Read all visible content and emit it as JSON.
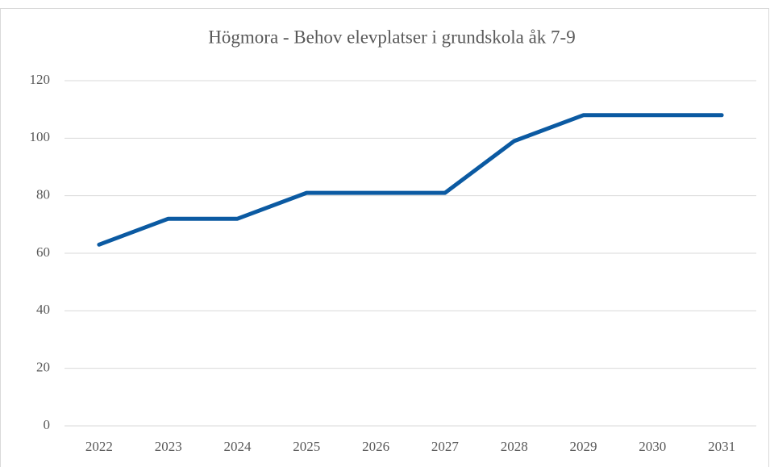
{
  "chart_data": {
    "type": "line",
    "title": "Högmora - Behov elevplatser i grundskola åk 7-9",
    "categories": [
      "2022",
      "2023",
      "2024",
      "2025",
      "2026",
      "2027",
      "2028",
      "2029",
      "2030",
      "2031"
    ],
    "values": [
      63,
      72,
      72,
      81,
      81,
      81,
      99,
      108,
      108,
      108
    ],
    "color": "#0b5aa2",
    "ylim": [
      0,
      120
    ],
    "yticks": [
      0,
      20,
      40,
      60,
      80,
      100,
      120
    ],
    "grid": true
  }
}
